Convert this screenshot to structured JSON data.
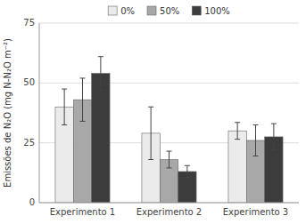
{
  "chart_data": {
    "type": "bar",
    "y_label": "Emissões de N₂O (mg N-N₂O m⁻²)",
    "categories": [
      "Experimento 1",
      "Experimento 2",
      "Experimento 3"
    ],
    "series": [
      {
        "name": "0%",
        "color": "#ebebeb",
        "values": [
          40.0,
          29.0,
          30.0
        ],
        "errors": [
          7.5,
          11.0,
          3.5
        ]
      },
      {
        "name": "50%",
        "color": "#a8a8a8",
        "values": [
          43.0,
          18.0,
          26.0
        ],
        "errors": [
          9.0,
          3.5,
          6.5
        ]
      },
      {
        "name": "100%",
        "color": "#3c3c3c",
        "values": [
          54.0,
          13.0,
          27.5
        ],
        "errors": [
          7.0,
          2.5,
          5.5
        ]
      }
    ],
    "ylim": [
      0,
      75
    ],
    "yticks": [
      0,
      25,
      50,
      75
    ],
    "grid": true,
    "legend": "top"
  }
}
